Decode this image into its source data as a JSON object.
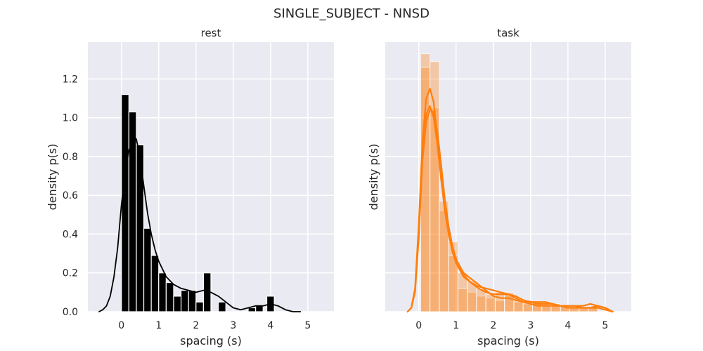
{
  "figure": {
    "title": "SINGLE_SUBJECT - NNSD"
  },
  "style": {
    "panel_bg": "#eaeaf2",
    "grid_color": "#ffffff",
    "rest_color": "#000000",
    "task_color": "#ff7f0e"
  },
  "chart_data": [
    {
      "type": "histogram",
      "title": "rest",
      "xlabel": "spacing (s)",
      "ylabel": "density p(s)",
      "xlim": [
        -0.9,
        5.7
      ],
      "ylim": [
        0,
        1.39
      ],
      "xticks": [
        0,
        1,
        2,
        3,
        4,
        5
      ],
      "yticks": [
        0.0,
        0.2,
        0.4,
        0.6,
        0.8,
        1.0,
        1.2
      ],
      "grid": true,
      "bins": [
        {
          "x0": 0.0,
          "x1": 0.2,
          "value": 1.12
        },
        {
          "x0": 0.2,
          "x1": 0.4,
          "value": 1.03
        },
        {
          "x0": 0.4,
          "x1": 0.6,
          "value": 0.86
        },
        {
          "x0": 0.6,
          "x1": 0.8,
          "value": 0.43
        },
        {
          "x0": 0.8,
          "x1": 1.0,
          "value": 0.29
        },
        {
          "x0": 1.0,
          "x1": 1.2,
          "value": 0.2
        },
        {
          "x0": 1.2,
          "x1": 1.4,
          "value": 0.15
        },
        {
          "x0": 1.4,
          "x1": 1.6,
          "value": 0.08
        },
        {
          "x0": 1.6,
          "x1": 1.8,
          "value": 0.11
        },
        {
          "x0": 1.8,
          "x1": 2.0,
          "value": 0.11
        },
        {
          "x0": 2.0,
          "x1": 2.2,
          "value": 0.05
        },
        {
          "x0": 2.2,
          "x1": 2.4,
          "value": 0.2
        },
        {
          "x0": 2.6,
          "x1": 2.8,
          "value": 0.05
        },
        {
          "x0": 3.4,
          "x1": 3.6,
          "value": 0.02
        },
        {
          "x0": 3.6,
          "x1": 3.8,
          "value": 0.03
        },
        {
          "x0": 3.9,
          "x1": 4.1,
          "value": 0.08
        }
      ],
      "kde": {
        "x": [
          -0.6,
          -0.5,
          -0.4,
          -0.3,
          -0.2,
          -0.1,
          0.0,
          0.1,
          0.2,
          0.3,
          0.35,
          0.4,
          0.5,
          0.6,
          0.7,
          0.8,
          0.9,
          1.0,
          1.1,
          1.2,
          1.4,
          1.6,
          1.8,
          2.0,
          2.2,
          2.4,
          2.6,
          2.8,
          3.0,
          3.2,
          3.4,
          3.6,
          3.8,
          4.0,
          4.2,
          4.4,
          4.6,
          4.8
        ],
        "y": [
          0.0,
          0.01,
          0.03,
          0.08,
          0.18,
          0.33,
          0.55,
          0.72,
          0.83,
          0.88,
          0.9,
          0.89,
          0.8,
          0.65,
          0.51,
          0.4,
          0.32,
          0.26,
          0.22,
          0.18,
          0.14,
          0.12,
          0.11,
          0.1,
          0.11,
          0.1,
          0.08,
          0.05,
          0.02,
          0.01,
          0.02,
          0.03,
          0.03,
          0.04,
          0.03,
          0.01,
          0.0,
          0.0
        ]
      }
    },
    {
      "type": "histogram",
      "title": "task",
      "xlabel": "spacing (s)",
      "ylabel": "density p(s)",
      "xlim": [
        -0.9,
        5.7
      ],
      "ylim": [
        0,
        1.39
      ],
      "xticks": [
        0,
        1,
        2,
        3,
        4,
        5
      ],
      "yticks": [],
      "grid": true,
      "bins_a": [
        {
          "x0": 0.05,
          "x1": 0.3,
          "value": 1.33
        },
        {
          "x0": 0.3,
          "x1": 0.55,
          "value": 1.05
        },
        {
          "x0": 0.55,
          "x1": 0.8,
          "value": 0.52
        },
        {
          "x0": 0.8,
          "x1": 1.05,
          "value": 0.36
        },
        {
          "x0": 1.05,
          "x1": 1.3,
          "value": 0.2
        },
        {
          "x0": 1.3,
          "x1": 1.55,
          "value": 0.1
        },
        {
          "x0": 1.55,
          "x1": 1.8,
          "value": 0.08
        },
        {
          "x0": 1.8,
          "x1": 2.05,
          "value": 0.07
        },
        {
          "x0": 2.05,
          "x1": 2.3,
          "value": 0.1
        },
        {
          "x0": 2.3,
          "x1": 2.55,
          "value": 0.09
        },
        {
          "x0": 2.55,
          "x1": 2.8,
          "value": 0.05
        },
        {
          "x0": 2.8,
          "x1": 3.05,
          "value": 0.04
        },
        {
          "x0": 3.05,
          "x1": 3.3,
          "value": 0.05
        },
        {
          "x0": 3.3,
          "x1": 3.55,
          "value": 0.03
        },
        {
          "x0": 3.55,
          "x1": 3.8,
          "value": 0.04
        },
        {
          "x0": 3.8,
          "x1": 4.05,
          "value": 0.03
        },
        {
          "x0": 4.05,
          "x1": 4.3,
          "value": 0.02
        },
        {
          "x0": 4.3,
          "x1": 4.55,
          "value": 0.02
        },
        {
          "x0": 4.55,
          "x1": 4.8,
          "value": 0.02
        }
      ],
      "bins_b": [
        {
          "x0": 0.05,
          "x1": 0.3,
          "value": 1.26
        },
        {
          "x0": 0.3,
          "x1": 0.55,
          "value": 1.29
        },
        {
          "x0": 0.55,
          "x1": 0.8,
          "value": 0.57
        },
        {
          "x0": 0.8,
          "x1": 1.05,
          "value": 0.29
        },
        {
          "x0": 1.05,
          "x1": 1.3,
          "value": 0.12
        },
        {
          "x0": 1.3,
          "x1": 1.55,
          "value": 0.16
        },
        {
          "x0": 1.55,
          "x1": 1.8,
          "value": 0.12
        },
        {
          "x0": 1.8,
          "x1": 2.05,
          "value": 0.09
        },
        {
          "x0": 2.05,
          "x1": 2.3,
          "value": 0.06
        },
        {
          "x0": 2.3,
          "x1": 2.55,
          "value": 0.1
        },
        {
          "x0": 2.55,
          "x1": 2.8,
          "value": 0.06
        },
        {
          "x0": 2.8,
          "x1": 3.05,
          "value": 0.06
        },
        {
          "x0": 3.05,
          "x1": 3.3,
          "value": 0.05
        },
        {
          "x0": 3.3,
          "x1": 3.55,
          "value": 0.05
        },
        {
          "x0": 3.55,
          "x1": 3.8,
          "value": 0.04
        },
        {
          "x0": 3.8,
          "x1": 4.05,
          "value": 0.03
        },
        {
          "x0": 4.05,
          "x1": 4.3,
          "value": 0.03
        },
        {
          "x0": 4.3,
          "x1": 4.55,
          "value": 0.02
        },
        {
          "x0": 4.55,
          "x1": 4.8,
          "value": 0.02
        }
      ],
      "kde": [
        {
          "x": [
            -0.3,
            -0.2,
            -0.1,
            0.0,
            0.1,
            0.2,
            0.3,
            0.4,
            0.5,
            0.6,
            0.7,
            0.8,
            0.9,
            1.0,
            1.2,
            1.4,
            1.6,
            1.8,
            2.0,
            2.2,
            2.4,
            2.6,
            2.8,
            3.0,
            3.2,
            3.4,
            3.6,
            3.8,
            4.0,
            4.2,
            4.4,
            4.6,
            4.8,
            5.0,
            5.2
          ],
          "y": [
            0.0,
            0.02,
            0.12,
            0.45,
            0.88,
            1.1,
            1.15,
            1.08,
            0.9,
            0.7,
            0.52,
            0.4,
            0.31,
            0.25,
            0.18,
            0.15,
            0.12,
            0.1,
            0.09,
            0.09,
            0.09,
            0.08,
            0.06,
            0.05,
            0.04,
            0.04,
            0.04,
            0.03,
            0.03,
            0.03,
            0.03,
            0.04,
            0.03,
            0.02,
            0.0
          ]
        },
        {
          "x": [
            -0.3,
            -0.2,
            -0.1,
            0.0,
            0.1,
            0.2,
            0.3,
            0.4,
            0.5,
            0.6,
            0.7,
            0.8,
            0.9,
            1.0,
            1.2,
            1.4,
            1.6,
            1.8,
            2.0,
            2.2,
            2.4,
            2.6,
            2.8,
            3.0,
            3.2,
            3.4,
            3.6,
            3.8,
            4.0,
            4.2,
            4.4,
            4.6,
            4.8,
            5.0,
            5.2
          ],
          "y": [
            0.0,
            0.02,
            0.1,
            0.38,
            0.8,
            1.02,
            1.06,
            1.0,
            0.86,
            0.68,
            0.52,
            0.41,
            0.33,
            0.27,
            0.2,
            0.17,
            0.14,
            0.11,
            0.08,
            0.07,
            0.07,
            0.06,
            0.05,
            0.05,
            0.05,
            0.05,
            0.04,
            0.03,
            0.02,
            0.02,
            0.02,
            0.02,
            0.03,
            0.02,
            0.0
          ]
        },
        {
          "x": [
            -0.3,
            -0.2,
            -0.1,
            0.0,
            0.1,
            0.2,
            0.3,
            0.4,
            0.5,
            0.6,
            0.7,
            0.8,
            0.9,
            1.0,
            1.2,
            1.4,
            1.6,
            1.8,
            2.0,
            2.2,
            2.4,
            2.6,
            2.8,
            3.0,
            3.2,
            3.4,
            3.6,
            3.8,
            4.0,
            4.2,
            4.4,
            4.6,
            4.8,
            5.0,
            5.2
          ],
          "y": [
            0.0,
            0.02,
            0.11,
            0.4,
            0.78,
            0.98,
            1.04,
            1.03,
            0.93,
            0.76,
            0.58,
            0.44,
            0.34,
            0.27,
            0.19,
            0.15,
            0.13,
            0.12,
            0.11,
            0.1,
            0.09,
            0.07,
            0.05,
            0.04,
            0.03,
            0.03,
            0.03,
            0.03,
            0.03,
            0.03,
            0.02,
            0.02,
            0.02,
            0.01,
            0.0
          ]
        }
      ]
    }
  ]
}
